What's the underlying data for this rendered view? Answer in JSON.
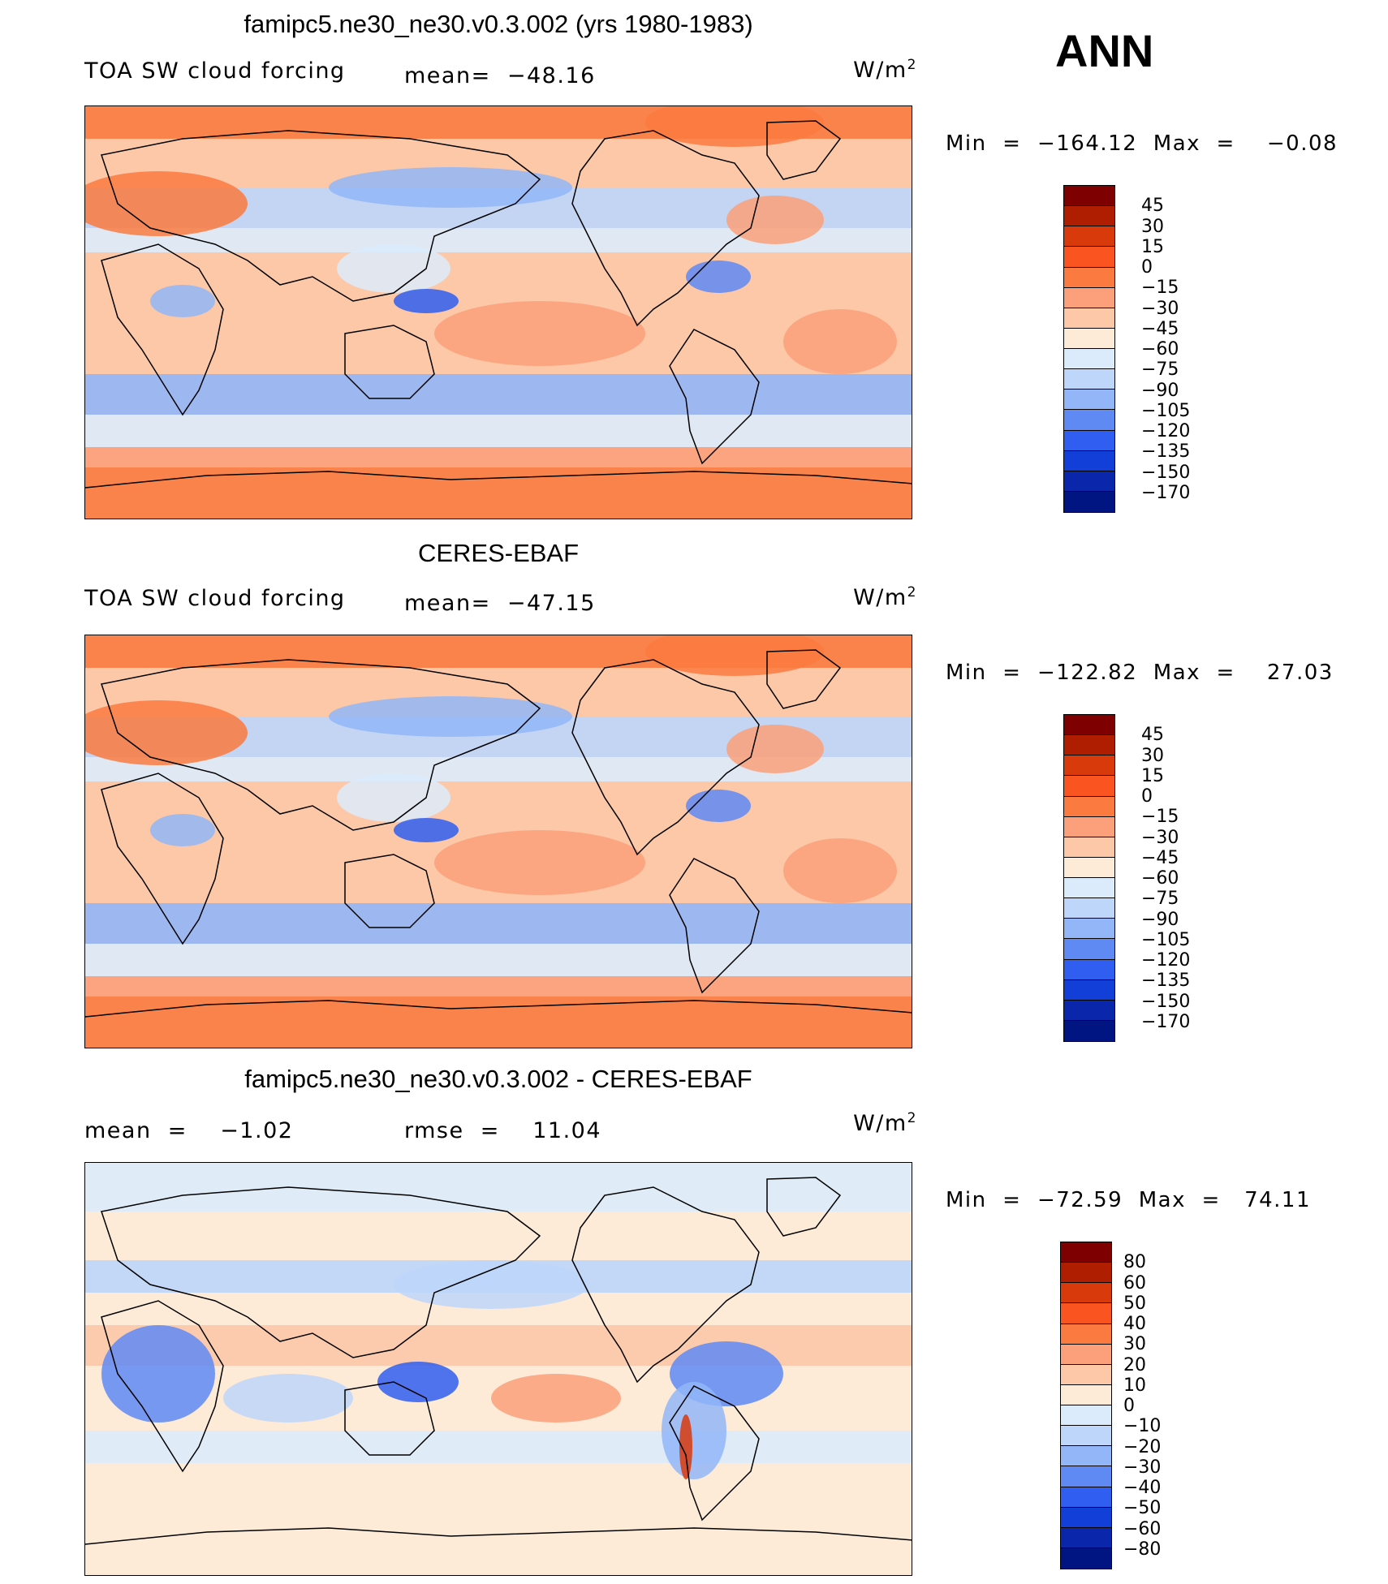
{
  "season": "ANN",
  "units_base": "W/m",
  "units_exp": "2",
  "panels": [
    {
      "title": "famipc5.ne30_ne30.v0.3.002 (yrs 1980-1983)",
      "left_label": "TOA SW cloud forcing",
      "center_label": "mean=  −48.16",
      "minmax": "Min  =  −164.12  Max  =    −0.08",
      "colorbar_labels": [
        "45",
        "30",
        "15",
        "0",
        "−15",
        "−30",
        "−45",
        "−60",
        "−75",
        "−90",
        "−105",
        "−120",
        "−135",
        "−150",
        "−170"
      ],
      "map_pattern": "absolute"
    },
    {
      "title": "CERES-EBAF",
      "left_label": "TOA SW cloud forcing",
      "center_label": "mean=  −47.15",
      "minmax": "Min  =  −122.82  Max  =    27.03",
      "colorbar_labels": [
        "45",
        "30",
        "15",
        "0",
        "−15",
        "−30",
        "−45",
        "−60",
        "−75",
        "−90",
        "−105",
        "−120",
        "−135",
        "−150",
        "−170"
      ],
      "map_pattern": "absolute"
    },
    {
      "title": "famipc5.ne30_ne30.v0.3.002 - CERES-EBAF",
      "left_label": "mean  =    −1.02",
      "center_label": "rmse  =    11.04",
      "minmax": "Min  =  −72.59  Max  =   74.11",
      "colorbar_labels": [
        "80",
        "60",
        "50",
        "40",
        "30",
        "20",
        "10",
        "0",
        "−10",
        "−20",
        "−30",
        "−40",
        "−50",
        "−60",
        "−80"
      ],
      "map_pattern": "difference"
    }
  ],
  "colors": {
    "colorbar": [
      "#7f0000",
      "#b01e00",
      "#d93a0c",
      "#fa5421",
      "#fa7a40",
      "#fba07a",
      "#fcc8a8",
      "#fdebd8",
      "#dcebfb",
      "#bdd6fa",
      "#92b6f8",
      "#5f8af4",
      "#2f5ef0",
      "#123fd8",
      "#0a26aa",
      "#001482"
    ],
    "land_outline": "#000000",
    "frame": "#000000"
  }
}
